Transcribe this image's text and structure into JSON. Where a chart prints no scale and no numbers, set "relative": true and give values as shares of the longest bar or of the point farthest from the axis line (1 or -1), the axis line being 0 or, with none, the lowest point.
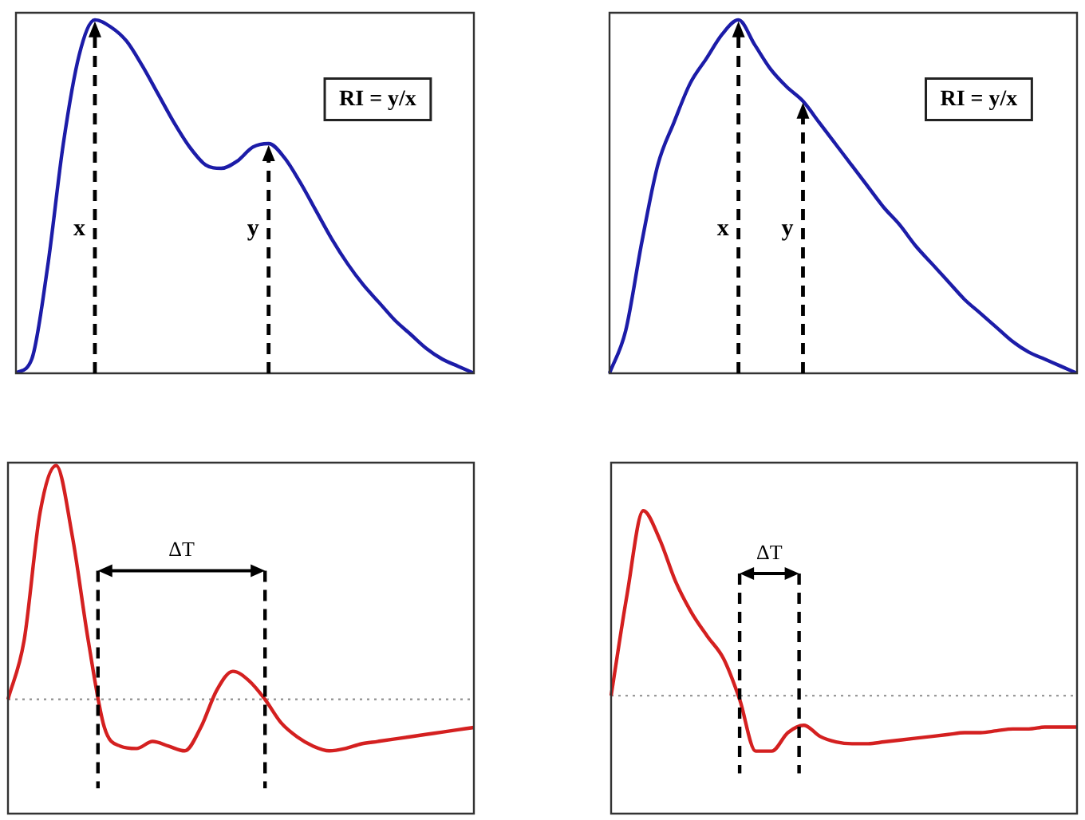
{
  "chart_data": [
    {
      "type": "line",
      "relative": true,
      "marker": "none",
      "legend": false,
      "categories": [
        null,
        null,
        null,
        null,
        null,
        null,
        null,
        null,
        null,
        null,
        null,
        null,
        null,
        null,
        null,
        null,
        null,
        null,
        null,
        null,
        null,
        null,
        null,
        null,
        null,
        null,
        null,
        null,
        null,
        null
      ],
      "series": [
        {
          "color": "#1c1ca8",
          "values": [
            0,
            0.04,
            0.3,
            0.65,
            0.9,
            1,
            0.98,
            0.94,
            0.87,
            0.79,
            0.71,
            0.64,
            0.59,
            0.58,
            0.6,
            0.64,
            0.65,
            0.61,
            0.54,
            0.46,
            0.38,
            0.31,
            0.25,
            0.2,
            0.15,
            0.11,
            0.07,
            0.04,
            0.02,
            0
          ]
        }
      ],
      "annotations": [
        "x",
        "y",
        "RI = y/x"
      ]
    },
    {
      "type": "line",
      "relative": true,
      "marker": "none",
      "legend": false,
      "categories": [
        null,
        null,
        null,
        null,
        null,
        null,
        null,
        null,
        null,
        null,
        null,
        null,
        null,
        null,
        null,
        null,
        null,
        null,
        null,
        null,
        null,
        null,
        null,
        null,
        null,
        null,
        null,
        null,
        null,
        null
      ],
      "series": [
        {
          "color": "#1c1ca8",
          "values": [
            0,
            0.12,
            0.37,
            0.59,
            0.71,
            0.82,
            0.89,
            0.96,
            1,
            0.93,
            0.86,
            0.81,
            0.77,
            0.71,
            0.65,
            0.59,
            0.53,
            0.47,
            0.42,
            0.36,
            0.31,
            0.26,
            0.21,
            0.17,
            0.13,
            0.09,
            0.06,
            0.04,
            0.02,
            0
          ]
        }
      ],
      "annotations": [
        "x",
        "y",
        "RI = y/x"
      ]
    },
    {
      "type": "line",
      "relative": true,
      "marker": "none",
      "legend": false,
      "categories": [
        null,
        null,
        null,
        null,
        null,
        null,
        null,
        null,
        null,
        null,
        null,
        null,
        null,
        null,
        null,
        null,
        null,
        null,
        null,
        null,
        null,
        null,
        null,
        null,
        null,
        null,
        null,
        null,
        null,
        null
      ],
      "series": [
        {
          "color": "#d42020",
          "values": [
            0,
            0.25,
            0.8,
            1,
            0.7,
            0.25,
            -0.12,
            -0.2,
            -0.21,
            -0.18,
            -0.2,
            -0.22,
            -0.12,
            0.04,
            0.12,
            0.08,
            0,
            -0.1,
            -0.16,
            -0.2,
            -0.22,
            -0.21,
            -0.19,
            -0.18,
            -0.17,
            -0.16,
            -0.15,
            -0.14,
            -0.13,
            -0.12
          ]
        }
      ],
      "ref_lines": [
        {
          "axis": "y",
          "value": 0,
          "line_style": "dotted",
          "color": "#999999"
        }
      ],
      "annotations": [
        "ΔT"
      ]
    },
    {
      "type": "line",
      "relative": true,
      "marker": "none",
      "legend": false,
      "categories": [
        null,
        null,
        null,
        null,
        null,
        null,
        null,
        null,
        null,
        null,
        null,
        null,
        null,
        null,
        null,
        null,
        null,
        null,
        null,
        null,
        null,
        null,
        null,
        null,
        null,
        null,
        null,
        null,
        null,
        null
      ],
      "series": [
        {
          "color": "#d42020",
          "values": [
            0,
            0.55,
            1,
            0.85,
            0.62,
            0.45,
            0.32,
            0.2,
            -0.02,
            -0.3,
            -0.3,
            -0.2,
            -0.16,
            -0.22,
            -0.25,
            -0.26,
            -0.26,
            -0.25,
            -0.24,
            -0.23,
            -0.22,
            -0.21,
            -0.2,
            -0.2,
            -0.19,
            -0.18,
            -0.18,
            -0.17,
            -0.17,
            -0.17
          ]
        }
      ],
      "ref_lines": [
        {
          "axis": "y",
          "value": 0,
          "line_style": "dotted",
          "color": "#999999"
        }
      ],
      "annotations": [
        "ΔT"
      ]
    }
  ]
}
